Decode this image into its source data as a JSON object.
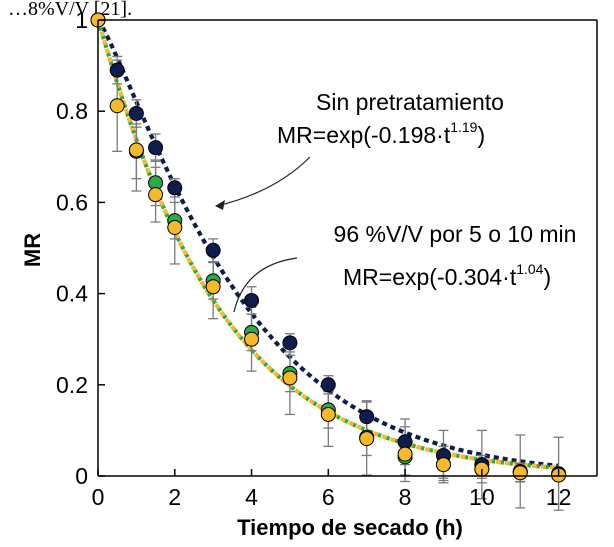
{
  "top_fragment": "…8%V/V [21].",
  "chart_data": {
    "type": "scatter",
    "xlabel": "Tiempo de secado (h)",
    "ylabel": "MR",
    "xlim": [
      0,
      13
    ],
    "ylim": [
      0,
      1
    ],
    "xticks": [
      0,
      2,
      4,
      6,
      8,
      10,
      12
    ],
    "yticks": [
      0,
      0.2,
      0.4,
      0.6,
      0.8,
      1
    ],
    "ytick_labels": [
      "0",
      "0.2",
      "0.4",
      "0.6",
      "0.8",
      "1"
    ],
    "grid": false,
    "series": [
      {
        "color": "#0e1d4d",
        "x": [
          0,
          0.5,
          1,
          1.5,
          2,
          3,
          4,
          5,
          6,
          7,
          8,
          9,
          10,
          11,
          12
        ],
        "y": [
          1.0,
          0.89,
          0.795,
          0.72,
          0.632,
          0.495,
          0.385,
          0.292,
          0.2,
          0.13,
          0.075,
          0.045,
          0.025,
          0.01,
          0.005
        ],
        "err": [
          0,
          0.03,
          0.03,
          0.03,
          0.02,
          0.025,
          0.03,
          0.02,
          0.02,
          0.035,
          0.05,
          0.055,
          0.075,
          0.08,
          0.08
        ]
      },
      {
        "color": "#2aaa47",
        "x": [
          0,
          1,
          1.5,
          2,
          3,
          4,
          5,
          6,
          7,
          8,
          9,
          10,
          11,
          12
        ],
        "y": [
          1.0,
          0.712,
          0.643,
          0.56,
          0.428,
          0.315,
          0.225,
          0.145,
          0.085,
          0.042,
          0.025,
          0.015,
          0.008,
          0.003
        ],
        "err": [
          0,
          0.06,
          0.05,
          0.04,
          0.04,
          0.04,
          0.04,
          0.04,
          0.04,
          0.04,
          0.03,
          0.02,
          0.02,
          0.01
        ]
      },
      {
        "color": "#f6b92b",
        "x": [
          0,
          0.5,
          1,
          1.5,
          2,
          3,
          4,
          5,
          6,
          7,
          8,
          9,
          10,
          11,
          12
        ],
        "y": [
          1.0,
          0.812,
          0.715,
          0.617,
          0.545,
          0.415,
          0.3,
          0.215,
          0.135,
          0.082,
          0.048,
          0.025,
          0.015,
          0.007,
          0.002
        ],
        "err": [
          0,
          0.1,
          0.09,
          0.06,
          0.08,
          0.07,
          0.07,
          0.08,
          0.07,
          0.08,
          0.06,
          0.04,
          0.03,
          0.02,
          0.01
        ]
      }
    ],
    "fits": [
      {
        "formula": "MR=exp(-0.198·t^1.19)",
        "k": 0.198,
        "n": 1.19,
        "color": "#0e1d4d"
      },
      {
        "formula": "MR=exp(-0.304·t^1.04)",
        "k": 0.304,
        "n": 1.04,
        "color": "#2aaa47"
      },
      {
        "formula": "MR=exp(-0.304·t^1.04)",
        "k": 0.304,
        "n": 1.04,
        "color": "#f6b92b"
      }
    ],
    "annotations": [
      {
        "label": "Sin pretratamiento",
        "formula_main": "MR=exp(-0.198·t",
        "formula_exp": "1.19",
        "formula_close": ")"
      },
      {
        "label": "96 %V/V por 5 o 10 min",
        "formula_main": "MR=exp(-0.304·t",
        "formula_exp": "1.04",
        "formula_close": ")"
      }
    ]
  }
}
